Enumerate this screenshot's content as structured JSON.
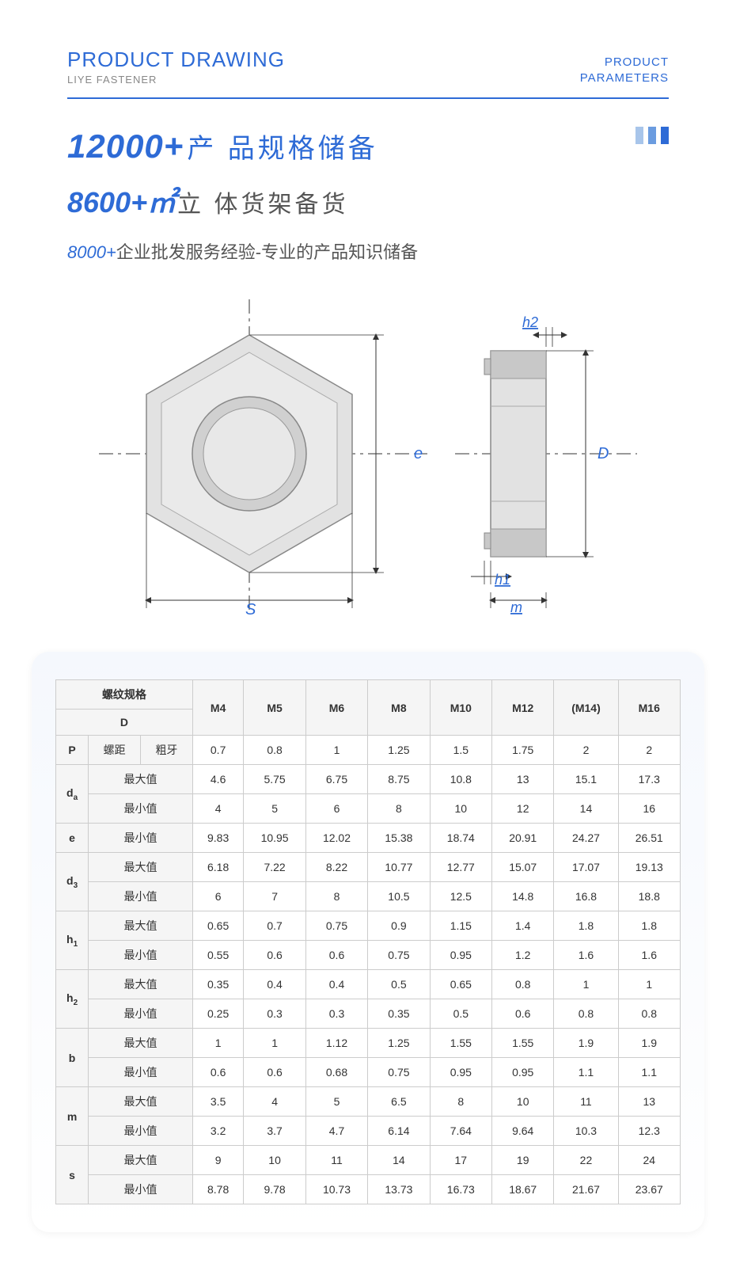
{
  "header": {
    "title_en": "PRODUCT DRAWING",
    "subtitle": "LIYE FASTENER",
    "right_top": "PRODUCT",
    "right_bottom": "PARAMETERS"
  },
  "hero": {
    "bar_colors": [
      "#a8c5ea",
      "#6b9ce0",
      "#2e6bd6"
    ],
    "line1_big": "12000+",
    "line1_cn": "产 品规格储备",
    "line2_big": "8600+㎡",
    "line2_cn": "立 体货架备货",
    "line3_em": "8000+",
    "line3_rest": "企业批发服务经验-专业的产品知识储备"
  },
  "drawing": {
    "labels": {
      "e": "e",
      "S": "S",
      "D": "D",
      "h1": "h1",
      "h2": "h2",
      "m": "m"
    },
    "accent_color": "#2e6bd6",
    "line_color": "#333333",
    "fill_light": "#e2e2e2",
    "fill_dark": "#c8c8c8"
  },
  "table": {
    "thread_spec": "螺纹规格",
    "D": "D",
    "columns": [
      "M4",
      "M5",
      "M6",
      "M8",
      "M10",
      "M12",
      "(M14)",
      "M16"
    ],
    "pitch_label": "P",
    "pitch_sub1": "螺距",
    "pitch_sub2": "粗牙",
    "max": "最大值",
    "min": "最小值",
    "rows": [
      {
        "key": "P",
        "sub": [
          "螺距",
          "粗牙"
        ],
        "single": true,
        "values": [
          "0.7",
          "0.8",
          "1",
          "1.25",
          "1.5",
          "1.75",
          "2",
          "2"
        ]
      },
      {
        "key": "da",
        "html": "d<sub>a</sub>",
        "max": [
          "4.6",
          "5.75",
          "6.75",
          "8.75",
          "10.8",
          "13",
          "15.1",
          "17.3"
        ],
        "min": [
          "4",
          "5",
          "6",
          "8",
          "10",
          "12",
          "14",
          "16"
        ]
      },
      {
        "key": "e",
        "html": "e",
        "min_only": true,
        "min": [
          "9.83",
          "10.95",
          "12.02",
          "15.38",
          "18.74",
          "20.91",
          "24.27",
          "26.51"
        ]
      },
      {
        "key": "d3",
        "html": "d<sub>3</sub>",
        "max": [
          "6.18",
          "7.22",
          "8.22",
          "10.77",
          "12.77",
          "15.07",
          "17.07",
          "19.13"
        ],
        "min": [
          "6",
          "7",
          "8",
          "10.5",
          "12.5",
          "14.8",
          "16.8",
          "18.8"
        ]
      },
      {
        "key": "h1",
        "html": "h<sub>1</sub>",
        "max": [
          "0.65",
          "0.7",
          "0.75",
          "0.9",
          "1.15",
          "1.4",
          "1.8",
          "1.8"
        ],
        "min": [
          "0.55",
          "0.6",
          "0.6",
          "0.75",
          "0.95",
          "1.2",
          "1.6",
          "1.6"
        ]
      },
      {
        "key": "h2",
        "html": "h<sub>2</sub>",
        "max": [
          "0.35",
          "0.4",
          "0.4",
          "0.5",
          "0.65",
          "0.8",
          "1",
          "1"
        ],
        "min": [
          "0.25",
          "0.3",
          "0.3",
          "0.35",
          "0.5",
          "0.6",
          "0.8",
          "0.8"
        ]
      },
      {
        "key": "b",
        "html": "b",
        "max": [
          "1",
          "1",
          "1.12",
          "1.25",
          "1.55",
          "1.55",
          "1.9",
          "1.9"
        ],
        "min": [
          "0.6",
          "0.6",
          "0.68",
          "0.75",
          "0.95",
          "0.95",
          "1.1",
          "1.1"
        ]
      },
      {
        "key": "m",
        "html": "m",
        "max": [
          "3.5",
          "4",
          "5",
          "6.5",
          "8",
          "10",
          "11",
          "13"
        ],
        "min": [
          "3.2",
          "3.7",
          "4.7",
          "6.14",
          "7.64",
          "9.64",
          "10.3",
          "12.3"
        ]
      },
      {
        "key": "s",
        "html": "s",
        "max": [
          "9",
          "10",
          "11",
          "14",
          "17",
          "19",
          "22",
          "24"
        ],
        "min": [
          "8.78",
          "9.78",
          "10.73",
          "13.73",
          "16.73",
          "18.67",
          "21.67",
          "23.67"
        ]
      }
    ]
  }
}
